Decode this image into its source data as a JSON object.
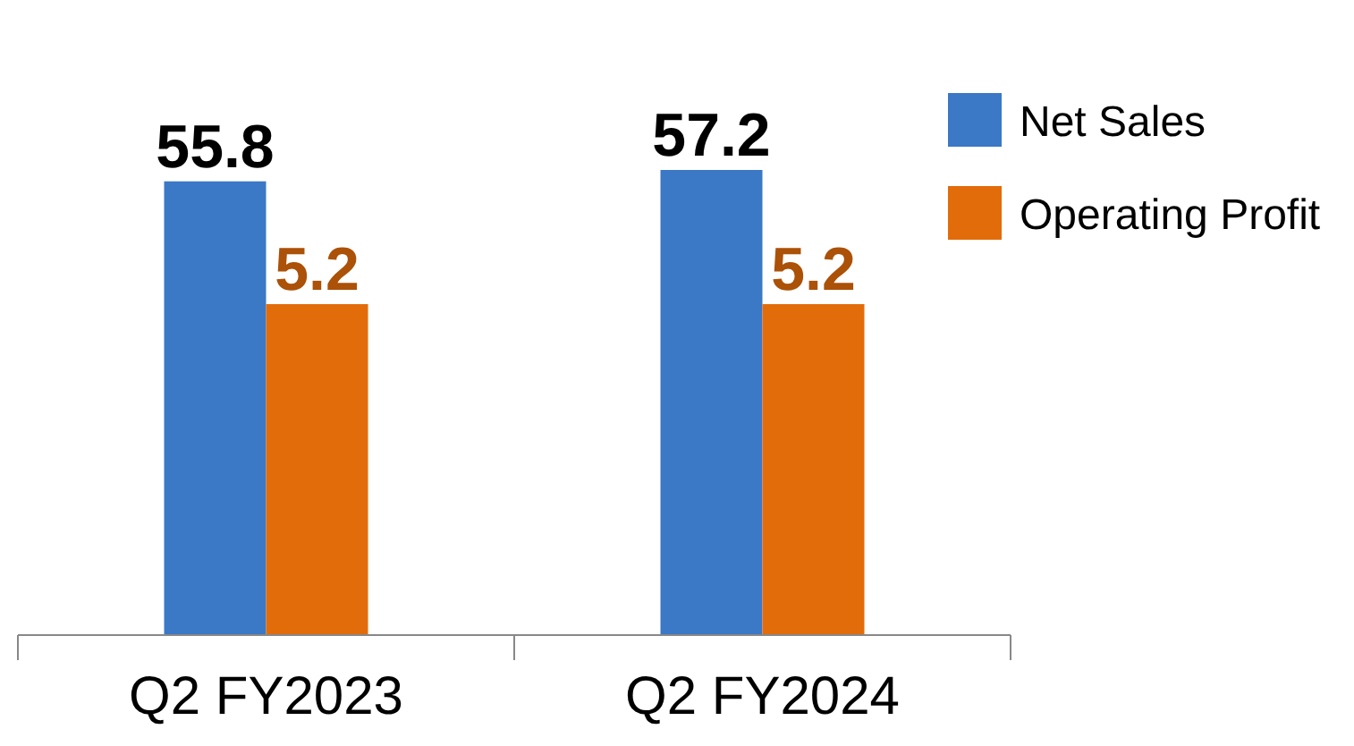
{
  "chart_data": {
    "type": "bar",
    "categories": [
      "Q2 FY2023",
      "Q2 FY2024"
    ],
    "series": [
      {
        "name": "Net Sales",
        "color": "#3b78c6",
        "values": [
          55.8,
          57.2
        ]
      },
      {
        "name": "Operating Profit",
        "color": "#e36c0a",
        "values": [
          5.2,
          5.2
        ],
        "axis": "y2"
      }
    ],
    "data_labels": true,
    "legend": "right",
    "tick_labels": "x"
  }
}
